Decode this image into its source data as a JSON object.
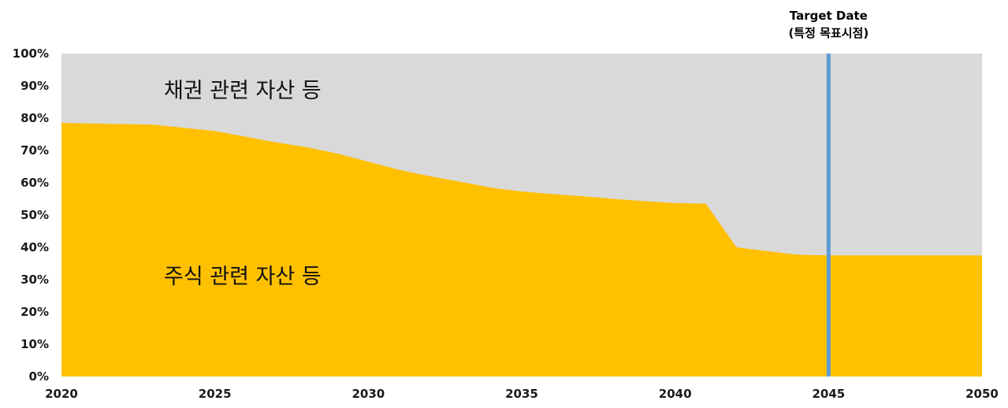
{
  "chart_data": {
    "type": "area",
    "xlim": [
      2020,
      2050
    ],
    "ylim": [
      0,
      100
    ],
    "x_ticks": [
      2020,
      2025,
      2030,
      2035,
      2040,
      2045,
      2050
    ],
    "x_tick_labels": [
      "2020",
      "2025",
      "2030",
      "2035",
      "2040",
      "2045",
      "2050"
    ],
    "y_ticks": [
      0,
      10,
      20,
      30,
      40,
      50,
      60,
      70,
      80,
      90,
      100
    ],
    "y_tick_labels": [
      "0%",
      "10%",
      "20%",
      "30%",
      "40%",
      "50%",
      "60%",
      "70%",
      "80%",
      "90%",
      "100%"
    ],
    "grid": false,
    "series": [
      {
        "name": "주식 관련 자산 등",
        "color": "#FFC000",
        "x": [
          2020,
          2023,
          2025,
          2027,
          2028,
          2029,
          2030,
          2031,
          2032,
          2033,
          2034,
          2035,
          2036,
          2037,
          2038,
          2039,
          2040,
          2041,
          2042,
          2043,
          2044,
          2045,
          2050
        ],
        "y": [
          78.5,
          78,
          76,
          72.5,
          71,
          69,
          66.5,
          64,
          62,
          60.3,
          58.5,
          57.3,
          56.5,
          55.8,
          55,
          54.3,
          53.7,
          53.5,
          40,
          38.8,
          37.7,
          37.5,
          37.5
        ]
      },
      {
        "name": "채권 관련 자산 등",
        "color": "#D9D9D9",
        "y_top": 100
      }
    ],
    "annotations": {
      "target_line": {
        "x": 2045,
        "color": "#5B9BD5",
        "label_line1": "Target Date",
        "label_line2": "(특정 목표시점)"
      }
    }
  }
}
